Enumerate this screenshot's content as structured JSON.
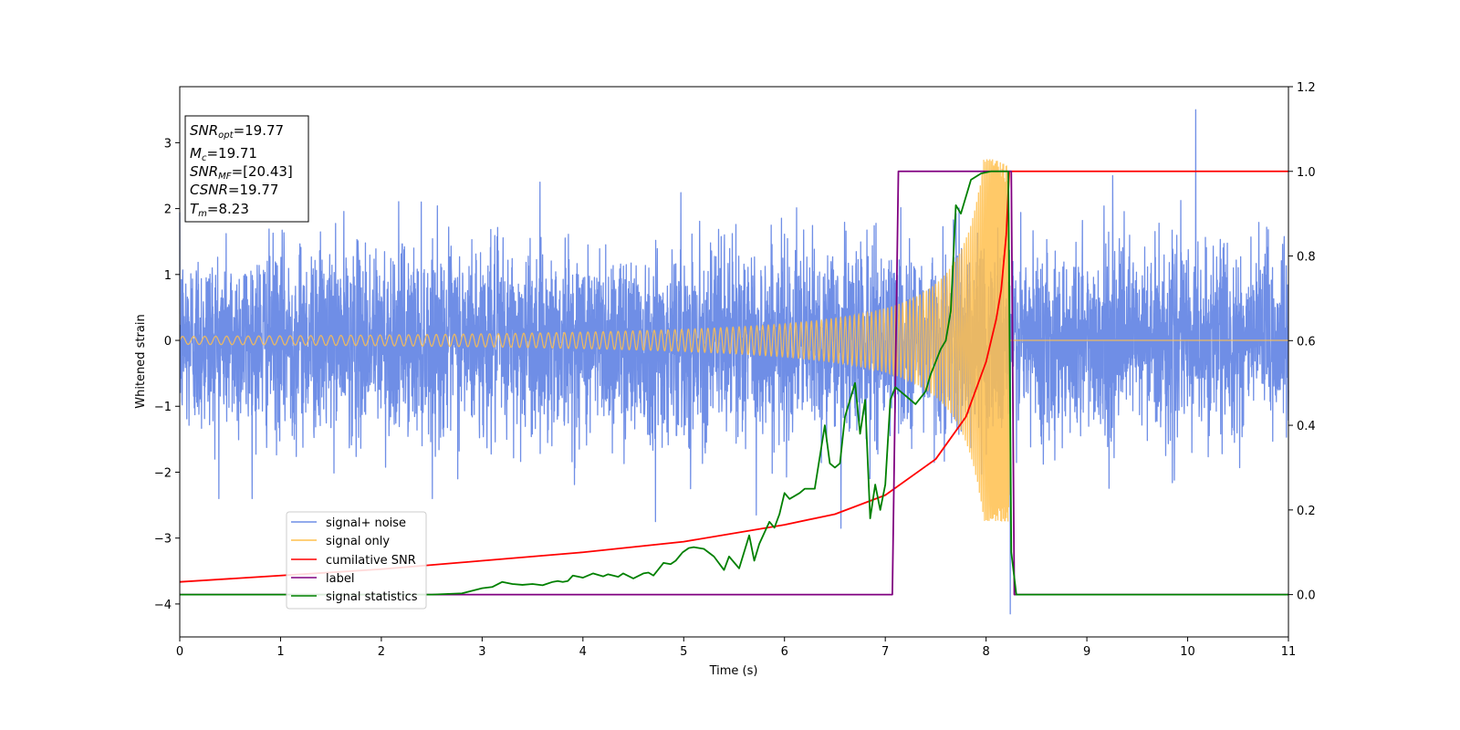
{
  "chart_data": {
    "type": "line",
    "xlabel": "Time (s)",
    "ylabel": "Whitened strain",
    "xlim": [
      0,
      11
    ],
    "ylim": [
      -4.5,
      3.85
    ],
    "y2lim": [
      -0.1,
      1.2
    ],
    "x_ticks": [
      "0",
      "1",
      "2",
      "3",
      "4",
      "5",
      "6",
      "7",
      "8",
      "9",
      "10",
      "11"
    ],
    "y_ticks": [
      "3",
      "2",
      "1",
      "0",
      "−1",
      "−2",
      "−3",
      "−4"
    ],
    "y2_ticks": [
      "1.2",
      "1.0",
      "0.8",
      "0.6",
      "0.4",
      "0.2",
      "0.0"
    ],
    "legend_placement": "lower-left",
    "info_box": {
      "snr_opt": "=19.77",
      "mc": "=19.71",
      "snr_mf": "=[20.43]",
      "csnr": "=19.77",
      "tm": "=8.23"
    },
    "series": [
      {
        "name": "signal+ noise",
        "axis": "left",
        "color": "#6f8ee6",
        "kind": "noise",
        "approx_std": 0.7,
        "notable_points": [
          [
            10.08,
            3.5
          ],
          [
            8.24,
            -4.15
          ],
          [
            4.72,
            -2.75
          ],
          [
            5.72,
            -2.65
          ],
          [
            6.56,
            -2.85
          ]
        ]
      },
      {
        "name": "signal only",
        "axis": "left",
        "color": "#ffc04d",
        "kind": "chirp",
        "merger_time": 8.23,
        "peak_amplitude": 2.75
      },
      {
        "name": "cumilative SNR",
        "axis": "right",
        "color": "#ff0000",
        "x": [
          0,
          1,
          2,
          3,
          4,
          5,
          6,
          6.5,
          7,
          7.5,
          7.8,
          8.0,
          8.1,
          8.15,
          8.2,
          8.23,
          8.25,
          11
        ],
        "y": [
          0.03,
          0.045,
          0.06,
          0.08,
          0.1,
          0.125,
          0.165,
          0.19,
          0.235,
          0.32,
          0.42,
          0.55,
          0.65,
          0.72,
          0.85,
          1.0,
          1.0,
          1.0
        ]
      },
      {
        "name": "label",
        "axis": "right",
        "color": "#800080",
        "x": [
          0,
          7.07,
          7.13,
          8.25,
          8.28,
          11
        ],
        "y": [
          0.0,
          0.0,
          1.0,
          1.0,
          0.0,
          0.0
        ]
      },
      {
        "name": "signal statistics",
        "axis": "right",
        "color": "#008000",
        "x": [
          0,
          2.5,
          2.8,
          3.0,
          3.1,
          3.2,
          3.3,
          3.4,
          3.5,
          3.6,
          3.7,
          3.75,
          3.8,
          3.85,
          3.9,
          4.0,
          4.1,
          4.2,
          4.25,
          4.35,
          4.4,
          4.5,
          4.6,
          4.65,
          4.7,
          4.75,
          4.8,
          4.87,
          4.92,
          4.99,
          5.05,
          5.1,
          5.2,
          5.3,
          5.4,
          5.45,
          5.55,
          5.65,
          5.7,
          5.75,
          5.85,
          5.9,
          5.95,
          6.0,
          6.05,
          6.15,
          6.2,
          6.3,
          6.4,
          6.45,
          6.5,
          6.55,
          6.6,
          6.7,
          6.75,
          6.8,
          6.85,
          6.9,
          6.95,
          7.0,
          7.05,
          7.1,
          7.2,
          7.3,
          7.4,
          7.45,
          7.55,
          7.6,
          7.65,
          7.7,
          7.75,
          7.85,
          7.95,
          8.05,
          8.15,
          8.22,
          8.25,
          8.3,
          11
        ],
        "y": [
          0.0,
          0.0,
          0.003,
          0.015,
          0.018,
          0.03,
          0.025,
          0.023,
          0.025,
          0.022,
          0.03,
          0.032,
          0.03,
          0.032,
          0.045,
          0.04,
          0.05,
          0.043,
          0.048,
          0.042,
          0.05,
          0.038,
          0.05,
          0.052,
          0.045,
          0.06,
          0.075,
          0.072,
          0.08,
          0.1,
          0.11,
          0.112,
          0.108,
          0.09,
          0.058,
          0.09,
          0.062,
          0.14,
          0.08,
          0.12,
          0.172,
          0.158,
          0.19,
          0.24,
          0.226,
          0.24,
          0.25,
          0.25,
          0.4,
          0.31,
          0.3,
          0.31,
          0.42,
          0.5,
          0.38,
          0.46,
          0.18,
          0.26,
          0.2,
          0.26,
          0.46,
          0.49,
          0.47,
          0.45,
          0.48,
          0.52,
          0.58,
          0.6,
          0.67,
          0.92,
          0.9,
          0.98,
          0.995,
          1.0,
          1.0,
          1.0,
          0.1,
          0.0,
          0.0
        ]
      }
    ]
  }
}
